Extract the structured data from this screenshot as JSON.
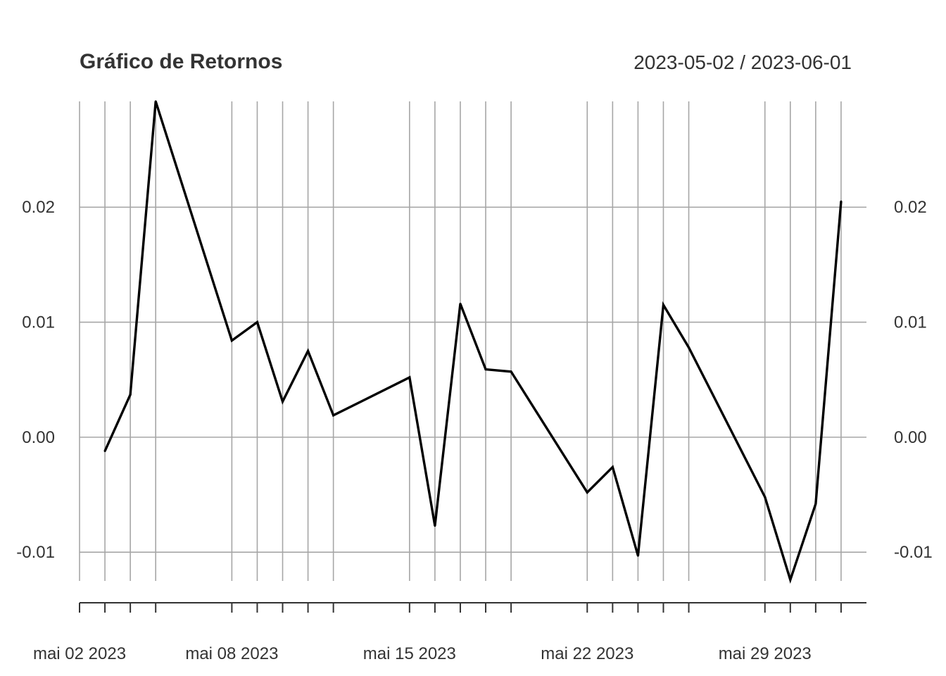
{
  "chart_data": {
    "type": "line",
    "title": "Gráfico de Retornos",
    "date_range_label": "2023-05-02 / 2023-06-01",
    "xlabel": "",
    "ylabel": "",
    "ylim": [
      -0.0125,
      0.0292
    ],
    "yticks": [
      -0.01,
      0.0,
      0.01,
      0.02
    ],
    "ytick_labels": [
      "-0.01",
      "0.00",
      "0.01",
      "0.02"
    ],
    "x_range": [
      "2023-05-01",
      "2023-06-01"
    ],
    "x_tick_labels": [
      {
        "date": "2023-05-01",
        "label": "mai 02 2023"
      },
      {
        "date": "2023-05-07",
        "label": "mai 08 2023"
      },
      {
        "date": "2023-05-14",
        "label": "mai 15 2023"
      },
      {
        "date": "2023-05-21",
        "label": "mai 22 2023"
      },
      {
        "date": "2023-05-28",
        "label": "mai 29 2023"
      }
    ],
    "grid": true,
    "series": [
      {
        "name": "Retornos",
        "color": "#000000",
        "x": [
          "2023-05-02",
          "2023-05-03",
          "2023-05-04",
          "2023-05-07",
          "2023-05-08",
          "2023-05-09",
          "2023-05-10",
          "2023-05-11",
          "2023-05-14",
          "2023-05-15",
          "2023-05-16",
          "2023-05-17",
          "2023-05-18",
          "2023-05-21",
          "2023-05-22",
          "2023-05-23",
          "2023-05-24",
          "2023-05-25",
          "2023-05-28",
          "2023-05-29",
          "2023-05-30",
          "2023-05-31"
        ],
        "values": [
          -0.0012,
          0.0037,
          0.0292,
          0.0084,
          0.01,
          0.0031,
          0.0075,
          0.0019,
          0.0052,
          -0.0077,
          0.0116,
          0.0059,
          0.0057,
          -0.0048,
          -0.0026,
          -0.0103,
          0.0115,
          0.0078,
          -0.0052,
          -0.0124,
          -0.0058,
          0.0205
        ]
      }
    ]
  }
}
